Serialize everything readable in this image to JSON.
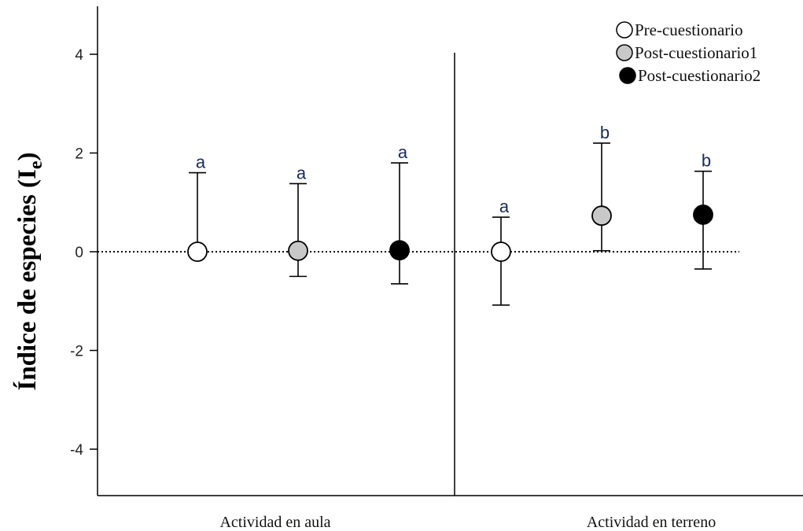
{
  "chart_data": {
    "type": "scatter",
    "ylabel": "Índice de especies",
    "ylabel_sub": "e",
    "ylim": [
      -5,
      5
    ],
    "yticks": [
      -4,
      -2,
      0,
      2,
      4
    ],
    "ytick_labels": [
      "-4",
      "-2",
      "0",
      "2",
      "4"
    ],
    "groups": [
      "Actividad en aula",
      "Actividad en terreno"
    ],
    "legend_position": "top-right",
    "reference_line": 0,
    "series": [
      {
        "name": "Pre-cuestionario",
        "color": "#ffffff",
        "values": [
          0.0,
          0.0
        ],
        "error_upper": [
          1.6,
          0.7
        ],
        "error_lower": [
          0.0,
          -1.08
        ],
        "letters": [
          "a",
          "a"
        ]
      },
      {
        "name": "Post-cuestionario1",
        "color": "#c8c8c8",
        "values": [
          0.02,
          0.73
        ],
        "error_upper": [
          1.38,
          2.2
        ],
        "error_lower": [
          -0.5,
          0.02
        ],
        "letters": [
          "a",
          "b"
        ]
      },
      {
        "name": "Post-cuestionario2",
        "color": "#000000",
        "values": [
          0.03,
          0.75
        ],
        "error_upper": [
          1.8,
          1.63
        ],
        "error_lower": [
          -0.65,
          -0.35
        ],
        "letters": [
          "a",
          "b"
        ]
      }
    ]
  }
}
